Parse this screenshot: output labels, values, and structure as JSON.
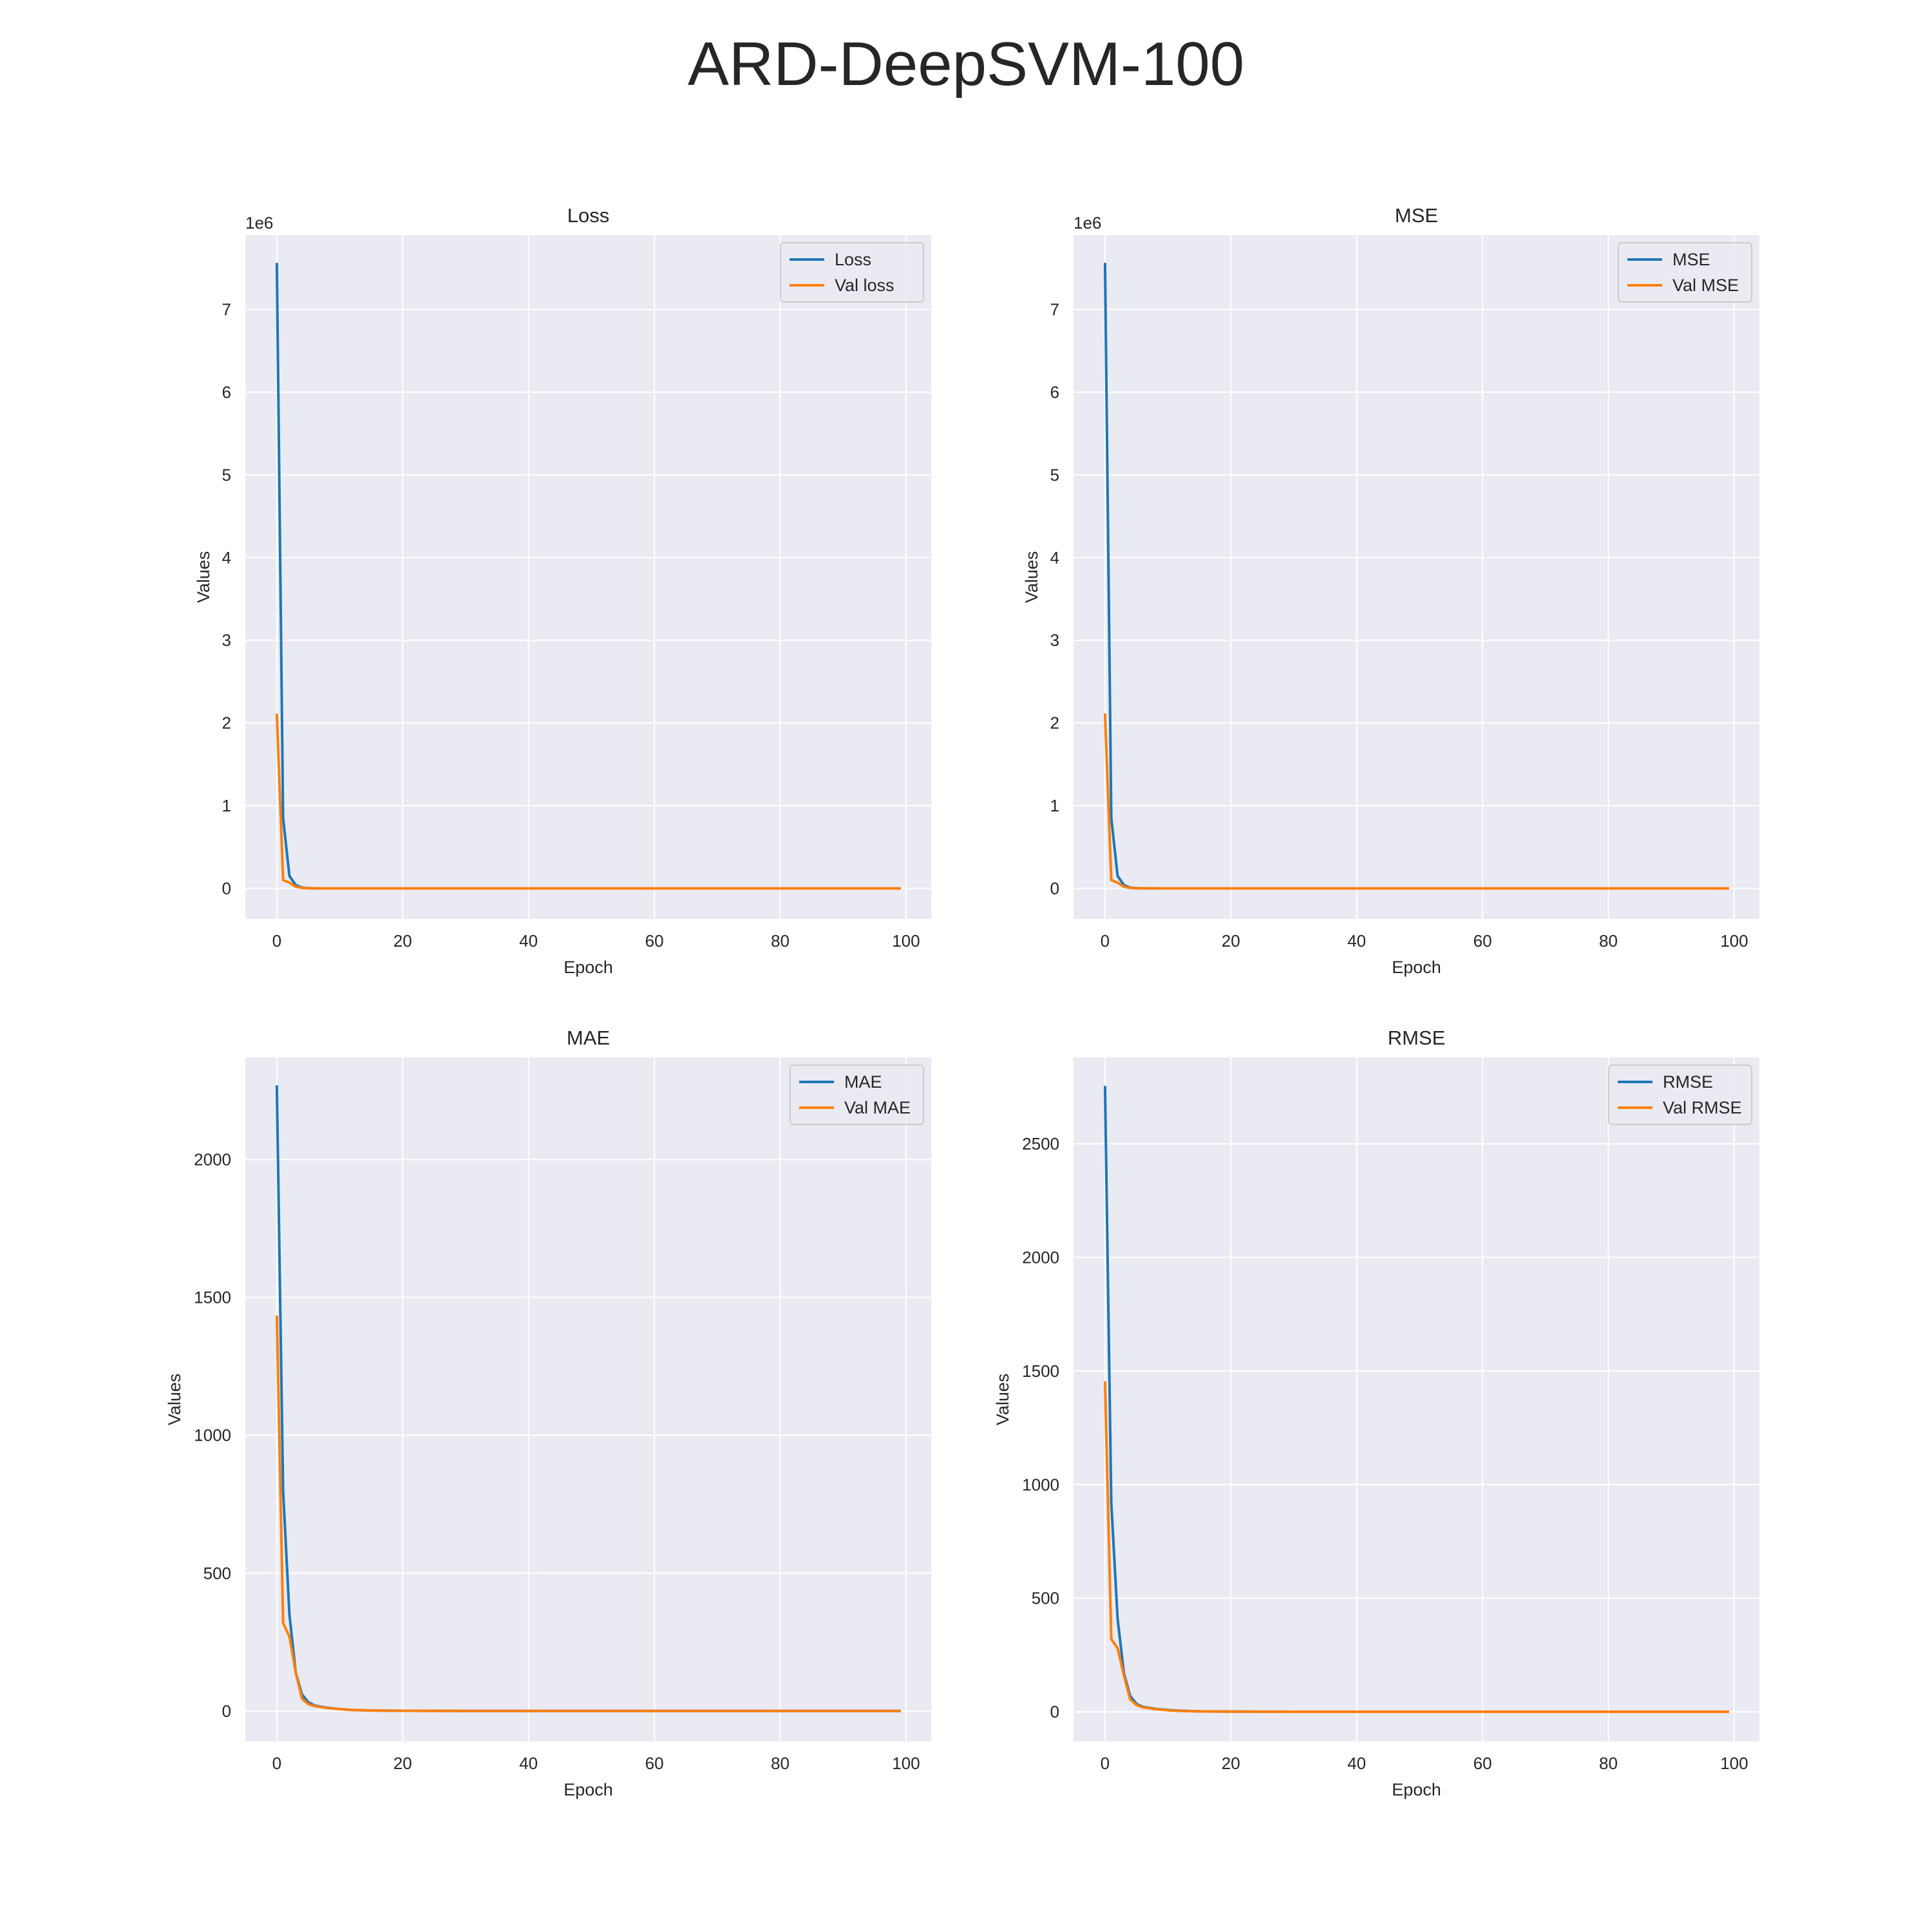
{
  "figure": {
    "title": "ARD-DeepSVM-100"
  },
  "chart_data": [
    {
      "type": "line",
      "title": "Loss",
      "xlabel": "Epoch",
      "ylabel": "Values",
      "y_offset_label": "1e6",
      "xlim": [
        -5,
        104
      ],
      "ylim": [
        -0.37,
        7.9
      ],
      "xticks": [
        0,
        20,
        40,
        60,
        80,
        100
      ],
      "yticks": [
        0,
        1,
        2,
        3,
        4,
        5,
        6,
        7
      ],
      "ytick_labels": [
        "0",
        "1",
        "2",
        "3",
        "4",
        "5",
        "6",
        "7"
      ],
      "legend_placement": "top-right",
      "grid": true,
      "series": [
        {
          "name": "Loss",
          "color": "#1f77b4",
          "points": [
            [
              0,
              7.55
            ],
            [
              1,
              0.85
            ],
            [
              2,
              0.15
            ],
            [
              3,
              0.04
            ],
            [
              4,
              0.01
            ],
            [
              5,
              0.003
            ],
            [
              6,
              0.001
            ],
            [
              10,
              0
            ],
            [
              99,
              0
            ]
          ]
        },
        {
          "name": "Val loss",
          "color": "#ff7f0e",
          "points": [
            [
              0,
              2.1
            ],
            [
              1,
              0.1
            ],
            [
              2,
              0.07
            ],
            [
              3,
              0.02
            ],
            [
              4,
              0.006
            ],
            [
              5,
              0.002
            ],
            [
              6,
              0.001
            ],
            [
              10,
              0
            ],
            [
              99,
              0
            ]
          ]
        }
      ]
    },
    {
      "type": "line",
      "title": "MSE",
      "xlabel": "Epoch",
      "ylabel": "Values",
      "y_offset_label": "1e6",
      "xlim": [
        -5,
        104
      ],
      "ylim": [
        -0.37,
        7.9
      ],
      "xticks": [
        0,
        20,
        40,
        60,
        80,
        100
      ],
      "yticks": [
        0,
        1,
        2,
        3,
        4,
        5,
        6,
        7
      ],
      "ytick_labels": [
        "0",
        "1",
        "2",
        "3",
        "4",
        "5",
        "6",
        "7"
      ],
      "legend_placement": "top-right",
      "grid": true,
      "series": [
        {
          "name": "MSE",
          "color": "#1f77b4",
          "points": [
            [
              0,
              7.55
            ],
            [
              1,
              0.85
            ],
            [
              2,
              0.15
            ],
            [
              3,
              0.04
            ],
            [
              4,
              0.01
            ],
            [
              5,
              0.003
            ],
            [
              6,
              0.001
            ],
            [
              10,
              0
            ],
            [
              99,
              0
            ]
          ]
        },
        {
          "name": "Val MSE",
          "color": "#ff7f0e",
          "points": [
            [
              0,
              2.1
            ],
            [
              1,
              0.1
            ],
            [
              2,
              0.07
            ],
            [
              3,
              0.02
            ],
            [
              4,
              0.006
            ],
            [
              5,
              0.002
            ],
            [
              6,
              0.001
            ],
            [
              10,
              0
            ],
            [
              99,
              0
            ]
          ]
        }
      ]
    },
    {
      "type": "line",
      "title": "MAE",
      "xlabel": "Epoch",
      "ylabel": "Values",
      "y_offset_label": "",
      "xlim": [
        -5,
        104
      ],
      "ylim": [
        -110,
        2370
      ],
      "xticks": [
        0,
        20,
        40,
        60,
        80,
        100
      ],
      "yticks": [
        0,
        500,
        1000,
        1500,
        2000
      ],
      "ytick_labels": [
        "0",
        "500",
        "1000",
        "1500",
        "2000"
      ],
      "legend_placement": "top-right",
      "grid": true,
      "series": [
        {
          "name": "MAE",
          "color": "#1f77b4",
          "points": [
            [
              0,
              2265
            ],
            [
              1,
              800
            ],
            [
              2,
              350
            ],
            [
              3,
              140
            ],
            [
              4,
              60
            ],
            [
              5,
              32
            ],
            [
              6,
              20
            ],
            [
              8,
              12
            ],
            [
              10,
              7
            ],
            [
              12,
              4
            ],
            [
              15,
              2
            ],
            [
              20,
              1
            ],
            [
              30,
              0.5
            ],
            [
              99,
              0.3
            ]
          ]
        },
        {
          "name": "Val MAE",
          "color": "#ff7f0e",
          "points": [
            [
              0,
              1430
            ],
            [
              1,
              320
            ],
            [
              2,
              270
            ],
            [
              3,
              140
            ],
            [
              4,
              45
            ],
            [
              5,
              25
            ],
            [
              6,
              18
            ],
            [
              8,
              11
            ],
            [
              10,
              7
            ],
            [
              12,
              4
            ],
            [
              15,
              2
            ],
            [
              20,
              1
            ],
            [
              30,
              0.5
            ],
            [
              99,
              0.3
            ]
          ]
        }
      ]
    },
    {
      "type": "line",
      "title": "RMSE",
      "xlabel": "Epoch",
      "ylabel": "Values",
      "y_offset_label": "",
      "xlim": [
        -5,
        104
      ],
      "ylim": [
        -130,
        2880
      ],
      "xticks": [
        0,
        20,
        40,
        60,
        80,
        100
      ],
      "yticks": [
        0,
        500,
        1000,
        1500,
        2000,
        2500
      ],
      "ytick_labels": [
        "0",
        "500",
        "1000",
        "1500",
        "2000",
        "2500"
      ],
      "legend_placement": "top-right",
      "grid": true,
      "series": [
        {
          "name": "RMSE",
          "color": "#1f77b4",
          "points": [
            [
              0,
              2750
            ],
            [
              1,
              920
            ],
            [
              2,
              410
            ],
            [
              3,
              170
            ],
            [
              4,
              70
            ],
            [
              5,
              35
            ],
            [
              6,
              22
            ],
            [
              8,
              13
            ],
            [
              10,
              8
            ],
            [
              12,
              5
            ],
            [
              15,
              2
            ],
            [
              20,
              1
            ],
            [
              30,
              0.5
            ],
            [
              99,
              0.3
            ]
          ]
        },
        {
          "name": "Val RMSE",
          "color": "#ff7f0e",
          "points": [
            [
              0,
              1450
            ],
            [
              1,
              320
            ],
            [
              2,
              280
            ],
            [
              3,
              160
            ],
            [
              4,
              55
            ],
            [
              5,
              30
            ],
            [
              6,
              20
            ],
            [
              8,
              12
            ],
            [
              10,
              7
            ],
            [
              12,
              4
            ],
            [
              15,
              2
            ],
            [
              20,
              1
            ],
            [
              30,
              0.5
            ],
            [
              99,
              0.3
            ]
          ]
        }
      ]
    }
  ]
}
